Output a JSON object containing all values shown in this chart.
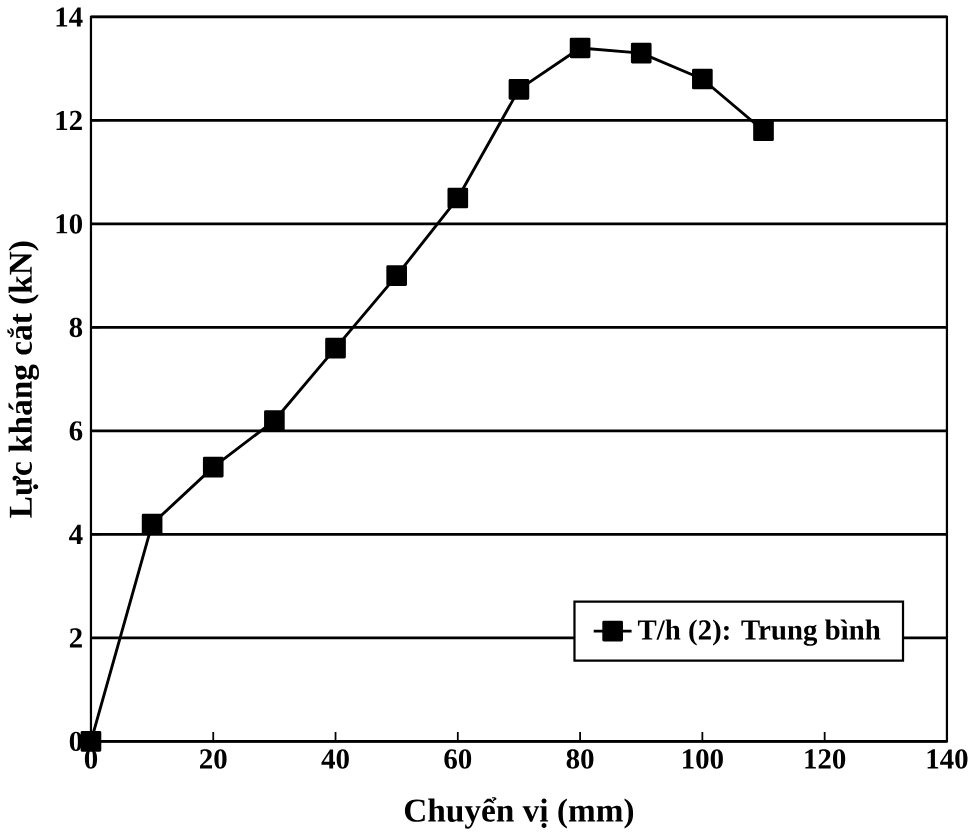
{
  "chart_data": {
    "type": "line",
    "xlabel": "Chuyển vị (mm)",
    "ylabel": "Lực kháng cắt (kN)",
    "x": [
      0,
      10,
      20,
      30,
      40,
      50,
      60,
      70,
      80,
      90,
      100,
      110
    ],
    "series": [
      {
        "name": "T/h (2):  Trung bình",
        "color": "#000000",
        "values": [
          0,
          4.2,
          5.3,
          6.2,
          7.6,
          9.0,
          10.5,
          12.6,
          13.4,
          13.3,
          12.8,
          11.8
        ]
      }
    ],
    "xlim": [
      0,
      140
    ],
    "ylim": [
      0,
      14
    ],
    "xticks": [
      0,
      20,
      40,
      60,
      80,
      100,
      120,
      140
    ],
    "yticks": [
      0,
      2,
      4,
      6,
      8,
      10,
      12,
      14
    ],
    "grid": "y",
    "legend": "bottom right",
    "marker": "square",
    "line_style": "solid"
  }
}
